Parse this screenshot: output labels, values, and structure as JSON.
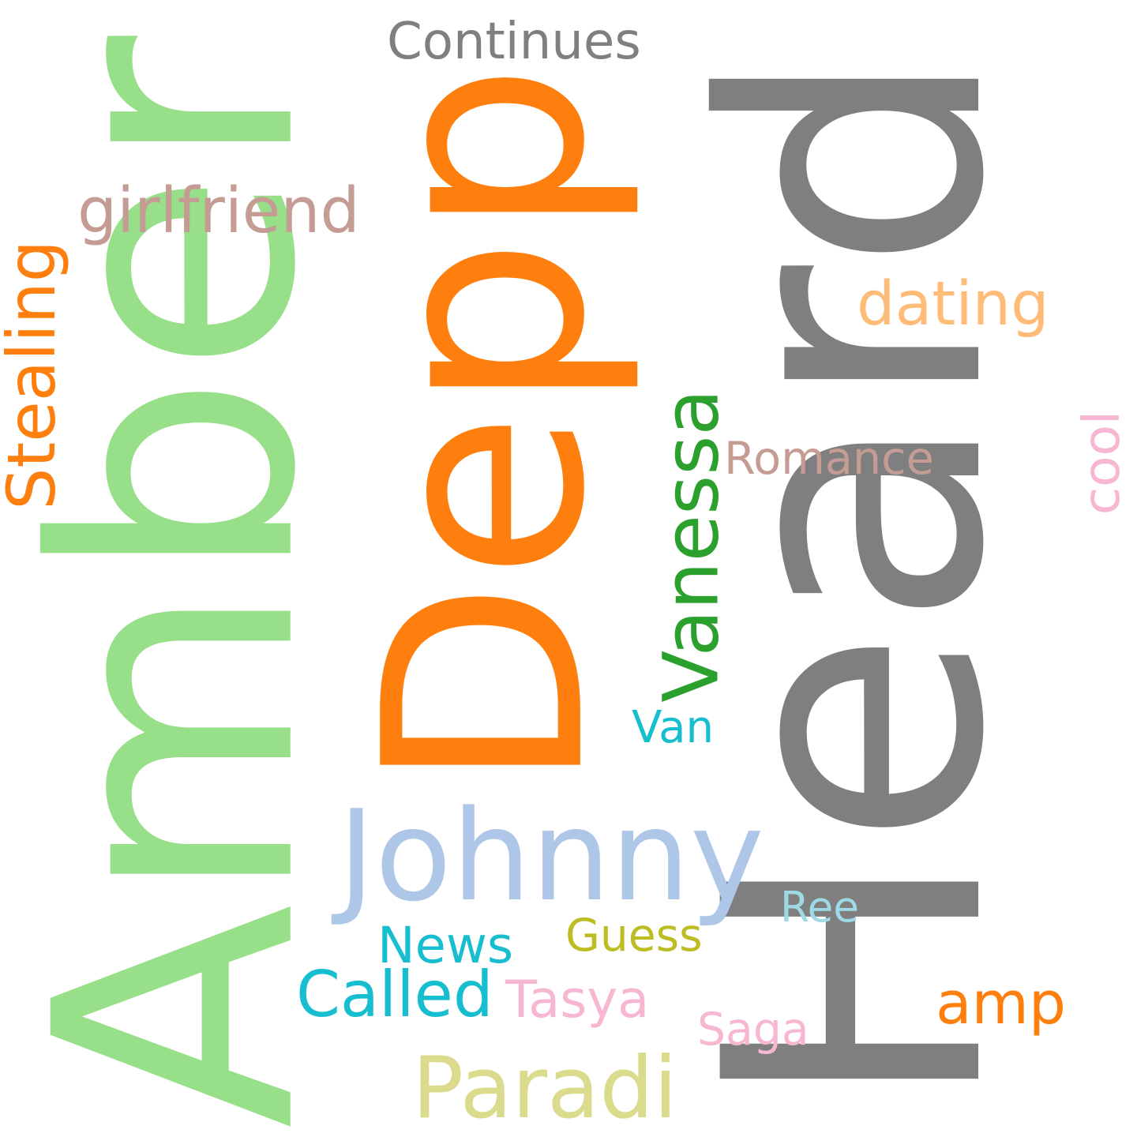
{
  "words": [
    {
      "key": "heard",
      "text": "Heard",
      "color": "#7f7f7f",
      "rotated": true
    },
    {
      "key": "amber",
      "text": "Amber",
      "color": "#98df8a",
      "rotated": true
    },
    {
      "key": "depp",
      "text": "Depp",
      "color": "#ff7f0e",
      "rotated": true
    },
    {
      "key": "johnny",
      "text": "Johnny",
      "color": "#aec7e8",
      "rotated": false
    },
    {
      "key": "vanessa",
      "text": "Vanessa",
      "color": "#2ca02c",
      "rotated": true
    },
    {
      "key": "stealing",
      "text": "Stealing",
      "color": "#ff7f0e",
      "rotated": true
    },
    {
      "key": "continues",
      "text": "Continues",
      "color": "#7f7f7f",
      "rotated": false
    },
    {
      "key": "girlfriend",
      "text": "girlfriend",
      "color": "#c49c94",
      "rotated": false
    },
    {
      "key": "dating",
      "text": "dating",
      "color": "#ffbb78",
      "rotated": false
    },
    {
      "key": "romance",
      "text": "Romance",
      "color": "#c49c94",
      "rotated": false
    },
    {
      "key": "cool",
      "text": "cool",
      "color": "#f7b6d2",
      "rotated": true
    },
    {
      "key": "van",
      "text": "Van",
      "color": "#17becf",
      "rotated": false
    },
    {
      "key": "ree",
      "text": "Ree",
      "color": "#9edae5",
      "rotated": false
    },
    {
      "key": "guess",
      "text": "Guess",
      "color": "#bcbd22",
      "rotated": false
    },
    {
      "key": "news",
      "text": "News",
      "color": "#17becf",
      "rotated": false
    },
    {
      "key": "called",
      "text": "Called",
      "color": "#17becf",
      "rotated": false
    },
    {
      "key": "tasya",
      "text": "Tasya",
      "color": "#f7b6d2",
      "rotated": false
    },
    {
      "key": "amp",
      "text": "amp",
      "color": "#ff7f0e",
      "rotated": false
    },
    {
      "key": "saga",
      "text": "Saga",
      "color": "#f7b6d2",
      "rotated": false
    },
    {
      "key": "paradi",
      "text": "Paradi",
      "color": "#dbdb8d",
      "rotated": false
    }
  ]
}
